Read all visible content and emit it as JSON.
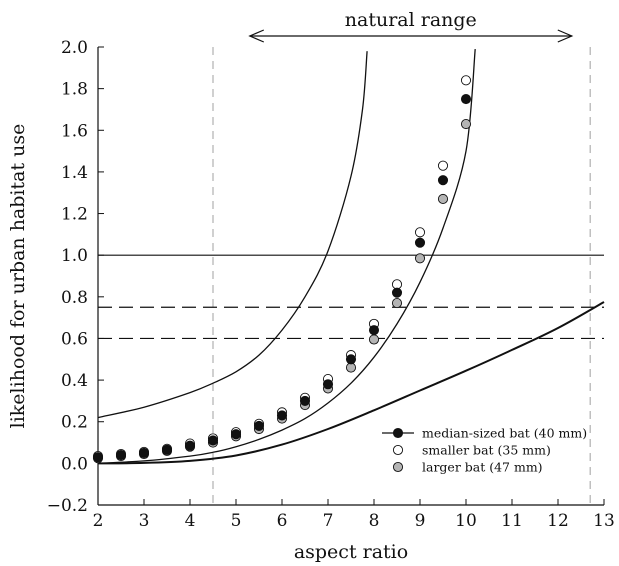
{
  "chart_data": {
    "type": "scatter",
    "title": "",
    "xlabel": "aspect ratio",
    "ylabel": "likelihood for urban habitat use",
    "xlim": [
      2,
      13
    ],
    "ylim": [
      -0.2,
      2.0
    ],
    "x_ticks": [
      2,
      3,
      4,
      5,
      6,
      7,
      8,
      9,
      10,
      11,
      12,
      13
    ],
    "y_ticks": [
      "−0.2",
      "0.0",
      "0.2",
      "0.4",
      "0.6",
      "0.8",
      "1.0",
      "1.2",
      "1.4",
      "1.6",
      "1.8",
      "2.0"
    ],
    "grid": false,
    "legend_position": "lower-right",
    "annotation": {
      "text": "natural range",
      "from_x": 5.3,
      "to_x": 12.3
    },
    "vertical_dashed_lines": [
      4.5,
      12.7
    ],
    "horizontal_reference_lines": [
      {
        "y": 1.0,
        "style": "solid"
      },
      {
        "y": 0.75,
        "style": "dashed"
      },
      {
        "y": 0.6,
        "style": "dashed"
      }
    ],
    "curves": [
      {
        "x": [
          2,
          3,
          4,
          4.5,
          5,
          5.5,
          6,
          6.5,
          7,
          7.5,
          8,
          8.5,
          9,
          9.5,
          10,
          10.2
        ],
        "y": [
          0.0,
          0.012,
          0.035,
          0.053,
          0.08,
          0.115,
          0.16,
          0.215,
          0.29,
          0.385,
          0.51,
          0.67,
          0.87,
          1.13,
          1.5,
          1.99
        ]
      },
      {
        "x": [
          2,
          3,
          4,
          4.5,
          5,
          5.5,
          6,
          6.5,
          7,
          7.5,
          7.75,
          7.85
        ],
        "y": [
          0.22,
          0.27,
          0.34,
          0.385,
          0.44,
          0.52,
          0.64,
          0.8,
          1.02,
          1.38,
          1.7,
          1.98
        ]
      },
      {
        "x": [
          2,
          3,
          4,
          5,
          6,
          7,
          8,
          9,
          10,
          11,
          12,
          13
        ],
        "y": [
          0.0,
          0.002,
          0.012,
          0.038,
          0.09,
          0.165,
          0.255,
          0.35,
          0.445,
          0.545,
          0.65,
          0.775
        ]
      }
    ],
    "series": [
      {
        "name": "median-sized bat (40 mm)",
        "marker_color": "#111111",
        "x": [
          2,
          2.5,
          3,
          3.5,
          4,
          4.5,
          5,
          5.5,
          6,
          6.5,
          7,
          7.5,
          8,
          8.5,
          9,
          9.5,
          10
        ],
        "y": [
          0.03,
          0.04,
          0.05,
          0.065,
          0.085,
          0.11,
          0.14,
          0.18,
          0.23,
          0.3,
          0.38,
          0.5,
          0.64,
          0.82,
          1.06,
          1.36,
          1.75
        ]
      },
      {
        "name": "smaller bat (35 mm)",
        "marker_color": "#ffffff",
        "x": [
          2,
          2.5,
          3,
          3.5,
          4,
          4.5,
          5,
          5.5,
          6,
          6.5,
          7,
          7.5,
          8,
          8.5,
          9,
          9.5,
          10
        ],
        "y": [
          0.035,
          0.045,
          0.055,
          0.07,
          0.095,
          0.12,
          0.15,
          0.19,
          0.245,
          0.315,
          0.405,
          0.52,
          0.67,
          0.86,
          1.11,
          1.43,
          1.84
        ]
      },
      {
        "name": "larger bat (47 mm)",
        "marker_color": "#b4b4b4",
        "x": [
          2,
          2.5,
          3,
          3.5,
          4,
          4.5,
          5,
          5.5,
          6,
          6.5,
          7,
          7.5,
          8,
          8.5,
          9,
          9.5,
          10
        ],
        "y": [
          0.025,
          0.035,
          0.045,
          0.06,
          0.08,
          0.1,
          0.13,
          0.165,
          0.215,
          0.28,
          0.36,
          0.46,
          0.595,
          0.77,
          0.985,
          1.27,
          1.63
        ]
      }
    ]
  }
}
